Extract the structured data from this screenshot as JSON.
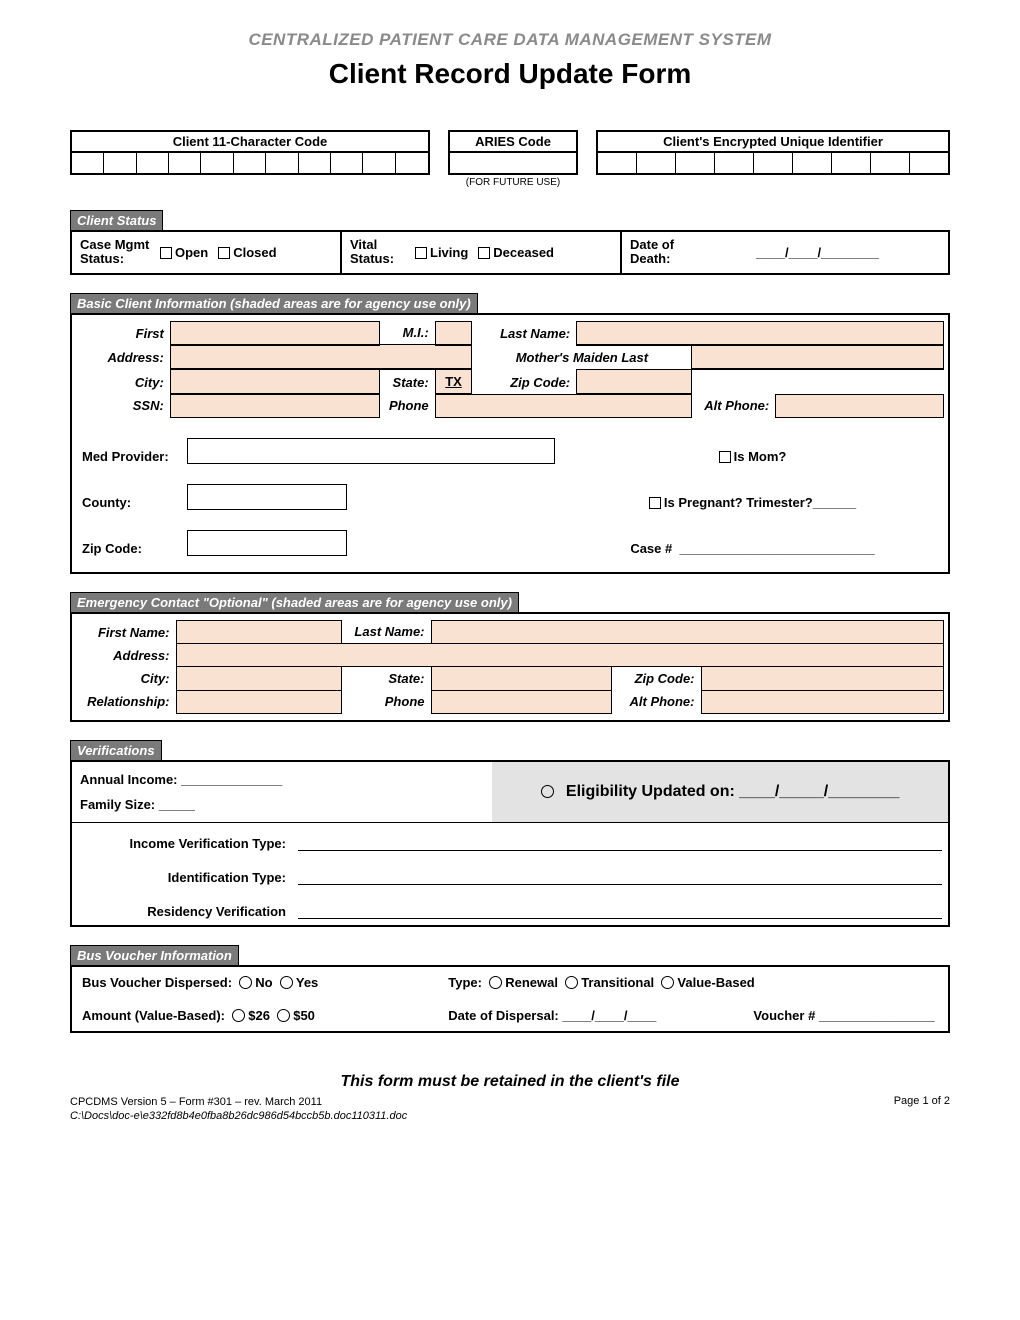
{
  "colors": {
    "tab_bg": "#7a7a7a",
    "shade_bg": "#fae2d2",
    "gray_bg": "#e3e3e3",
    "subtitle_gray": "#8a8a8a",
    "border": "#000000"
  },
  "header": {
    "system_title": "CENTRALIZED PATIENT CARE DATA MANAGEMENT SYSTEM",
    "form_title": "Client Record Update Form"
  },
  "top_codes": {
    "char_code_label": "Client 11-Character Code",
    "char_code_cells": 11,
    "aries_label": "ARIES Code",
    "aries_cells": 1,
    "aries_note": "(FOR FUTURE USE)",
    "eui_label": "Client's Encrypted Unique Identifier",
    "eui_cells": 9
  },
  "client_status": {
    "tab": "Client Status",
    "case_mgmt_label": "Case Mgmt Status:",
    "open": "Open",
    "closed": "Closed",
    "vital_label": "Vital Status:",
    "living": "Living",
    "deceased": "Deceased",
    "dod_label": "Date of Death:",
    "slash": "____/____/________"
  },
  "basic_info": {
    "tab": "Basic Client Information (shaded areas are for agency use only)",
    "first": "First",
    "mi": "M.I.:",
    "last": "Last Name:",
    "address": "Address:",
    "mmn": "Mother's Maiden Last",
    "city": "City:",
    "state": "State:",
    "state_val": "TX",
    "zip": "Zip Code:",
    "ssn": "SSN:",
    "phone": "Phone",
    "altphone": "Alt Phone:",
    "med_provider": "Med Provider:",
    "county": "County:",
    "zip2": "Zip Code:",
    "is_mom": "Is Mom?",
    "is_preg": "Is Pregnant?  Trimester?______",
    "case_no": "Case #",
    "case_line": "___________________________"
  },
  "emergency": {
    "tab": "Emergency Contact \"Optional\" (shaded areas are for agency use only)",
    "first": "First Name:",
    "last": "Last Name:",
    "address": "Address:",
    "city": "City:",
    "state": "State:",
    "zip": "Zip Code:",
    "relationship": "Relationship:",
    "phone": "Phone",
    "altphone": "Alt Phone:"
  },
  "verifications": {
    "tab": "Verifications",
    "annual_income": "Annual Income: ______________",
    "family_size": "Family Size: _____",
    "eligibility": "Eligibility Updated on: ____/_____/________",
    "income_ver": "Income Verification Type:",
    "id_type": "Identification Type:",
    "residency": "Residency Verification"
  },
  "bus": {
    "tab": "Bus Voucher Information",
    "dispersed": "Bus Voucher Dispersed:",
    "no": "No",
    "yes": "Yes",
    "type": "Type:",
    "renewal": "Renewal",
    "transitional": "Transitional",
    "valuebased": "Value-Based",
    "amount": "Amount (Value-Based):",
    "a26": "$26",
    "a50": "$50",
    "dod": "Date of Dispersal: ____/____/____",
    "voucher": "Voucher #  ________________"
  },
  "footer": {
    "note": "This form must be retained in the client's file",
    "version": "CPCDMS Version 5 – Form #301 – rev. March 2011",
    "path": "C:\\Docs\\doc-e\\e332fd8b4e0fba8b26dc986d54bccb5b.doc110311.doc",
    "page": "Page 1 of 2"
  }
}
